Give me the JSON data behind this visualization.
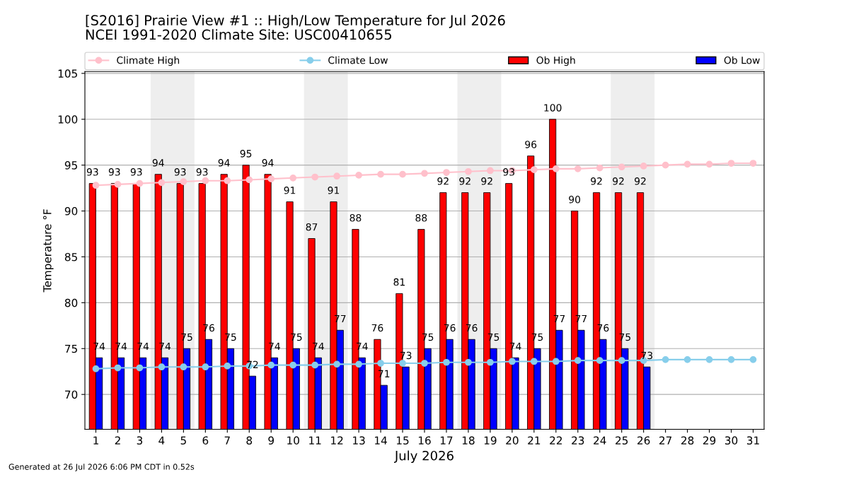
{
  "chart_data": {
    "type": "bar",
    "title": "[S2016] Prairie View #1 :: High/Low Temperature for Jul 2026",
    "subtitle": "NCEI 1991-2020 Climate Site: USC00410655",
    "xlabel": "July 2026",
    "ylabel": "Temperature °F",
    "x": [
      1,
      2,
      3,
      4,
      5,
      6,
      7,
      8,
      9,
      10,
      11,
      12,
      13,
      14,
      15,
      16,
      17,
      18,
      19,
      20,
      21,
      22,
      23,
      24,
      25,
      26,
      27,
      28,
      29,
      30,
      31
    ],
    "series": [
      {
        "name": "Climate High",
        "type": "line",
        "color": "#ffc0cb",
        "marker": "circle",
        "values": [
          92.8,
          92.9,
          93.0,
          93.1,
          93.2,
          93.3,
          93.3,
          93.4,
          93.5,
          93.6,
          93.7,
          93.8,
          93.9,
          94.0,
          94.0,
          94.1,
          94.2,
          94.3,
          94.4,
          94.4,
          94.5,
          94.6,
          94.6,
          94.7,
          94.8,
          94.9,
          95.0,
          95.1,
          95.1,
          95.2,
          95.2
        ]
      },
      {
        "name": "Climate Low",
        "type": "line",
        "color": "#87ceeb",
        "marker": "circle",
        "values": [
          72.8,
          72.9,
          72.9,
          73.0,
          73.0,
          73.0,
          73.1,
          73.1,
          73.2,
          73.2,
          73.2,
          73.3,
          73.3,
          73.4,
          73.4,
          73.4,
          73.5,
          73.5,
          73.5,
          73.6,
          73.6,
          73.6,
          73.7,
          73.7,
          73.7,
          73.7,
          73.8,
          73.8,
          73.8,
          73.8,
          73.8
        ]
      },
      {
        "name": "Ob High",
        "color": "#ff0000",
        "values": [
          93,
          93,
          93,
          94,
          93,
          93,
          94,
          95,
          94,
          91,
          87,
          91,
          88,
          76,
          81,
          88,
          92,
          92,
          92,
          93,
          96,
          100,
          90,
          92,
          92,
          92,
          null,
          null,
          null,
          null,
          null
        ],
        "value_labels": [
          "93",
          "93",
          "93",
          "94",
          "93",
          "93",
          "94",
          "95",
          "94",
          "91",
          "87",
          "91",
          "88",
          "76",
          "81",
          "88",
          "92",
          "92",
          "92",
          "93",
          "96",
          "100",
          "90",
          "92",
          "92",
          "92",
          null,
          null,
          null,
          null,
          null
        ]
      },
      {
        "name": "Ob Low",
        "color": "#0000ff",
        "values": [
          74,
          74,
          74,
          74,
          75,
          76,
          75,
          72,
          74,
          75,
          74,
          77,
          74,
          71,
          73,
          75,
          76,
          76,
          75,
          74,
          75,
          77,
          77,
          76,
          75,
          73,
          null,
          null,
          null,
          null,
          null
        ],
        "value_labels": [
          "74",
          "74",
          "74",
          "74",
          "75",
          "76",
          "75",
          "72",
          "74",
          "75",
          "74",
          "77",
          "74",
          "71",
          "73",
          "75",
          "76",
          "76",
          "75",
          "74",
          "75",
          "77",
          "77",
          "76",
          "75",
          "73",
          null,
          null,
          null,
          null,
          null
        ]
      }
    ],
    "xlim": [
      0.5,
      31.5
    ],
    "xticks": [
      1,
      2,
      3,
      4,
      5,
      6,
      7,
      8,
      9,
      10,
      11,
      12,
      13,
      14,
      15,
      16,
      17,
      18,
      19,
      20,
      21,
      22,
      23,
      24,
      25,
      26,
      27,
      28,
      29,
      30,
      31
    ],
    "ylim": [
      66.2,
      105.2
    ],
    "yticks": [
      70,
      75,
      80,
      85,
      90,
      95,
      100,
      105
    ],
    "grid": "y",
    "legend": "top",
    "bands": [
      {
        "axis": "x",
        "from": 3.5,
        "to": 5.5,
        "color": "#eeeeee"
      },
      {
        "axis": "x",
        "from": 10.5,
        "to": 12.5,
        "color": "#eeeeee"
      },
      {
        "axis": "x",
        "from": 17.5,
        "to": 19.5,
        "color": "#eeeeee"
      },
      {
        "axis": "x",
        "from": 24.5,
        "to": 26.5,
        "color": "#eeeeee"
      }
    ],
    "annotations": [
      "Generated at 26 Jul 2026 6:06 PM CDT in 0.52s"
    ]
  }
}
